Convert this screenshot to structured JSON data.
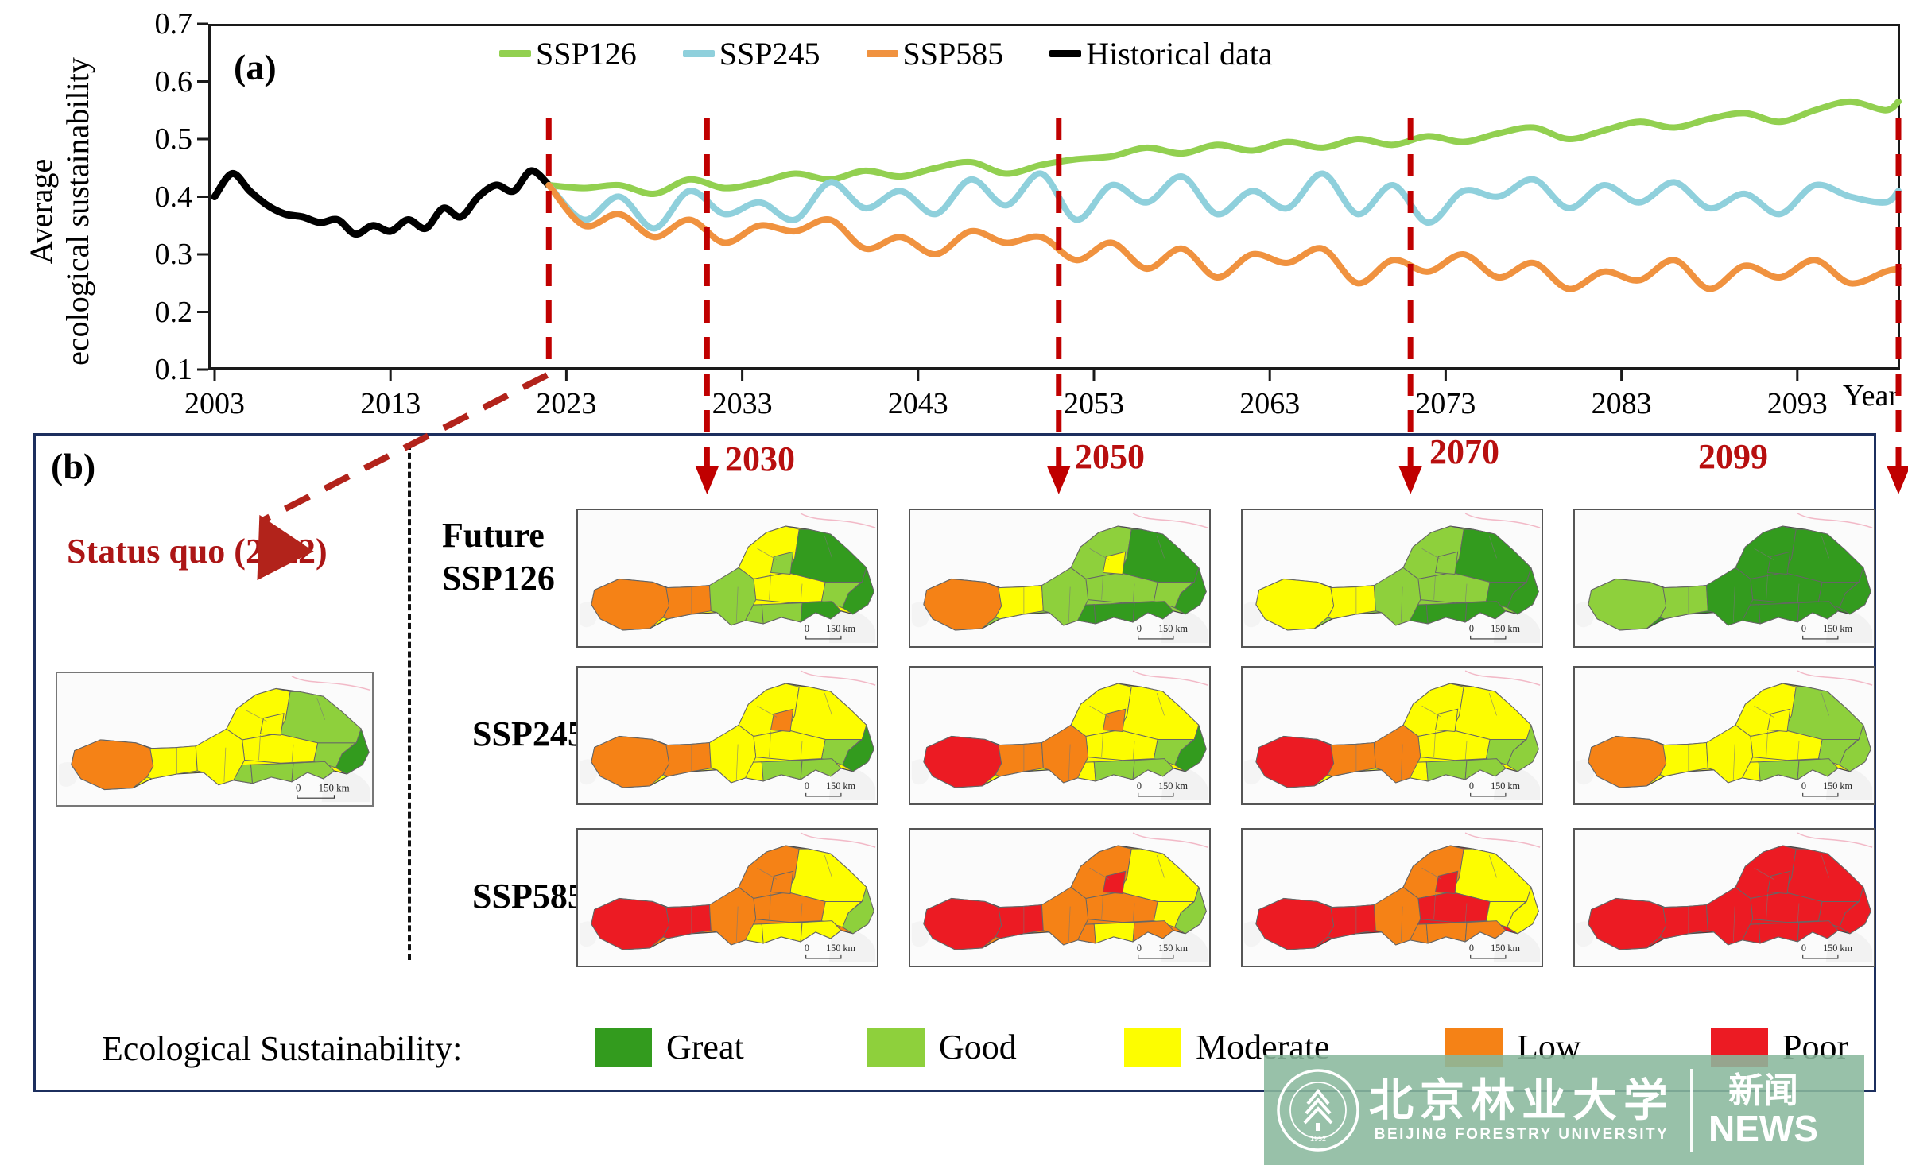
{
  "figure": {
    "panel_a": {
      "label": "(a)",
      "y_axis_label_lines": [
        "Average",
        "ecological sustainability"
      ],
      "x_axis_label": "Year",
      "y_ticks": [
        "0.7",
        "0.6",
        "0.5",
        "0.4",
        "0.3",
        "0.2",
        "0.1"
      ],
      "x_ticks": [
        "2003",
        "2013",
        "2023",
        "2033",
        "2043",
        "2053",
        "2063",
        "2073",
        "2083",
        "2093"
      ],
      "legend": [
        {
          "label": "SSP126",
          "color": "#92d050"
        },
        {
          "label": "SSP245",
          "color": "#8fd0dc"
        },
        {
          "label": "SSP585",
          "color": "#f0923f"
        },
        {
          "label": "Historical data",
          "color": "#000000"
        }
      ],
      "marker_line_color": "#c00000"
    },
    "panel_b": {
      "label": "(b)",
      "status_quo_label": "Status quo (2022)",
      "future_label": "Future",
      "row_labels": [
        "SSP126",
        "SSP245",
        "SSP585"
      ],
      "col_years": [
        "2030",
        "2050",
        "2070",
        "2099"
      ],
      "scale_zero": "0",
      "scale_dist": "150 km",
      "legend_title": "Ecological Sustainability:",
      "legend_items": [
        {
          "key": "G",
          "label": "Great",
          "color": "#339b1e"
        },
        {
          "key": "g",
          "label": "Good",
          "color": "#8ed03c"
        },
        {
          "key": "Y",
          "label": "Moderate",
          "color": "#fdfd00"
        },
        {
          "key": "O",
          "label": "Low",
          "color": "#f58216"
        },
        {
          "key": "R",
          "label": "Poor",
          "color": "#ec1b23"
        }
      ]
    },
    "watermark": {
      "cn_name": "北京林业大学",
      "en_name": "BEIJING FORESTRY UNIVERSITY",
      "news_cn": "新闻",
      "news_en": "NEWS",
      "seal_year": "1952"
    }
  },
  "chart_data": {
    "type": "line",
    "title": "",
    "xlabel": "Year",
    "ylabel": "Average ecological sustainability",
    "xlim": [
      2003,
      2099
    ],
    "ylim": [
      0.1,
      0.7
    ],
    "x_tick_values": [
      2003,
      2013,
      2023,
      2033,
      2043,
      2053,
      2063,
      2073,
      2083,
      2093
    ],
    "y_tick_values": [
      0.7,
      0.6,
      0.5,
      0.4,
      0.3,
      0.2,
      0.1
    ],
    "grid": false,
    "legend_position": "top-inside",
    "marker_years": [
      2022,
      2030,
      2050,
      2070,
      2099
    ],
    "series": [
      {
        "name": "Historical data",
        "color": "#000000",
        "x_start": 2003,
        "x_step": 1,
        "x_end_extra": null,
        "values": [
          0.4,
          0.44,
          0.41,
          0.385,
          0.37,
          0.365,
          0.355,
          0.36,
          0.335,
          0.35,
          0.34,
          0.36,
          0.345,
          0.38,
          0.365,
          0.4,
          0.42,
          0.41,
          0.445,
          0.42
        ]
      },
      {
        "name": "SSP126",
        "color": "#92d050",
        "x_start": 2022,
        "x_step": 2,
        "x_end_extra": 2099,
        "values": [
          0.42,
          0.415,
          0.42,
          0.405,
          0.43,
          0.415,
          0.425,
          0.44,
          0.43,
          0.445,
          0.435,
          0.45,
          0.46,
          0.44,
          0.455,
          0.465,
          0.47,
          0.485,
          0.475,
          0.49,
          0.48,
          0.495,
          0.485,
          0.5,
          0.49,
          0.505,
          0.495,
          0.51,
          0.52,
          0.5,
          0.515,
          0.53,
          0.52,
          0.535,
          0.545,
          0.53,
          0.55,
          0.565,
          0.55,
          0.565
        ]
      },
      {
        "name": "SSP245",
        "color": "#8fd0dc",
        "x_start": 2022,
        "x_step": 2,
        "x_end_extra": 2099,
        "values": [
          0.42,
          0.36,
          0.4,
          0.345,
          0.41,
          0.37,
          0.39,
          0.36,
          0.425,
          0.38,
          0.41,
          0.37,
          0.43,
          0.385,
          0.44,
          0.36,
          0.42,
          0.39,
          0.435,
          0.37,
          0.41,
          0.38,
          0.44,
          0.37,
          0.42,
          0.355,
          0.41,
          0.4,
          0.43,
          0.38,
          0.42,
          0.39,
          0.425,
          0.38,
          0.405,
          0.37,
          0.42,
          0.4,
          0.39,
          0.41
        ]
      },
      {
        "name": "SSP585",
        "color": "#f0923f",
        "x_start": 2022,
        "x_step": 2,
        "x_end_extra": 2099,
        "values": [
          0.42,
          0.35,
          0.37,
          0.33,
          0.36,
          0.32,
          0.35,
          0.34,
          0.36,
          0.31,
          0.33,
          0.3,
          0.34,
          0.32,
          0.33,
          0.29,
          0.32,
          0.275,
          0.31,
          0.26,
          0.3,
          0.285,
          0.31,
          0.25,
          0.29,
          0.27,
          0.3,
          0.26,
          0.285,
          0.24,
          0.27,
          0.255,
          0.29,
          0.24,
          0.28,
          0.26,
          0.29,
          0.25,
          0.27,
          0.275
        ]
      }
    ]
  },
  "map_grid": {
    "class_colors": {
      "G": "#339b1e",
      "g": "#8ed03c",
      "Y": "#fdfd00",
      "O": "#f58216",
      "R": "#ec1b23"
    },
    "status_quo": {
      "id": "statusquo",
      "scenario": "Status quo",
      "year": "2022",
      "zones": {
        "w1": "O",
        "w2": "Y",
        "w3": "Y",
        "n": "Y",
        "np": "Y",
        "ne": "g",
        "c": "Y",
        "e": "g",
        "se": "G",
        "s1": "g",
        "s2": "g",
        "s3": "g"
      }
    },
    "cells": [
      {
        "id": "ssp126-2030",
        "scenario": "SSP126",
        "year": "2030",
        "row": 0,
        "col": 0,
        "zones": {
          "w1": "O",
          "w2": "O",
          "w3": "g",
          "n": "Y",
          "np": "g",
          "ne": "G",
          "c": "Y",
          "e": "g",
          "se": "G",
          "s1": "g",
          "s2": "G",
          "s3": "g"
        }
      },
      {
        "id": "ssp126-2050",
        "scenario": "SSP126",
        "year": "2050",
        "row": 0,
        "col": 1,
        "zones": {
          "w1": "O",
          "w2": "Y",
          "w3": "g",
          "n": "g",
          "np": "Y",
          "ne": "G",
          "c": "g",
          "e": "g",
          "se": "G",
          "s1": "G",
          "s2": "G",
          "s3": "G"
        }
      },
      {
        "id": "ssp126-2070",
        "scenario": "SSP126",
        "year": "2070",
        "row": 0,
        "col": 2,
        "zones": {
          "w1": "Y",
          "w2": "Y",
          "w3": "g",
          "n": "g",
          "np": "g",
          "ne": "G",
          "c": "g",
          "e": "G",
          "se": "G",
          "s1": "G",
          "s2": "G",
          "s3": "G"
        }
      },
      {
        "id": "ssp126-2099",
        "scenario": "SSP126",
        "year": "2099",
        "row": 0,
        "col": 3,
        "zones": {
          "w1": "g",
          "w2": "g",
          "w3": "G",
          "n": "G",
          "np": "G",
          "ne": "G",
          "c": "G",
          "e": "G",
          "se": "G",
          "s1": "G",
          "s2": "G",
          "s3": "G"
        }
      },
      {
        "id": "ssp245-2030",
        "scenario": "SSP245",
        "year": "2030",
        "row": 1,
        "col": 0,
        "zones": {
          "w1": "O",
          "w2": "O",
          "w3": "Y",
          "n": "Y",
          "np": "O",
          "ne": "Y",
          "c": "Y",
          "e": "g",
          "se": "G",
          "s1": "g",
          "s2": "g",
          "s3": "Y"
        }
      },
      {
        "id": "ssp245-2050",
        "scenario": "SSP245",
        "year": "2050",
        "row": 1,
        "col": 1,
        "zones": {
          "w1": "R",
          "w2": "O",
          "w3": "O",
          "n": "Y",
          "np": "O",
          "ne": "Y",
          "c": "Y",
          "e": "g",
          "se": "G",
          "s1": "g",
          "s2": "g",
          "s3": "Y"
        }
      },
      {
        "id": "ssp245-2070",
        "scenario": "SSP245",
        "year": "2070",
        "row": 1,
        "col": 2,
        "zones": {
          "w1": "R",
          "w2": "O",
          "w3": "O",
          "n": "Y",
          "np": "Y",
          "ne": "Y",
          "c": "Y",
          "e": "g",
          "se": "g",
          "s1": "g",
          "s2": "g",
          "s3": "Y"
        }
      },
      {
        "id": "ssp245-2099",
        "scenario": "SSP245",
        "year": "2099",
        "row": 1,
        "col": 3,
        "zones": {
          "w1": "O",
          "w2": "Y",
          "w3": "Y",
          "n": "Y",
          "np": "Y",
          "ne": "g",
          "c": "Y",
          "e": "g",
          "se": "g",
          "s1": "g",
          "s2": "g",
          "s3": "Y"
        }
      },
      {
        "id": "ssp585-2030",
        "scenario": "SSP585",
        "year": "2030",
        "row": 2,
        "col": 0,
        "zones": {
          "w1": "R",
          "w2": "R",
          "w3": "O",
          "n": "O",
          "np": "O",
          "ne": "Y",
          "c": "O",
          "e": "Y",
          "se": "g",
          "s1": "Y",
          "s2": "Y",
          "s3": "Y"
        }
      },
      {
        "id": "ssp585-2050",
        "scenario": "SSP585",
        "year": "2050",
        "row": 2,
        "col": 1,
        "zones": {
          "w1": "R",
          "w2": "R",
          "w3": "O",
          "n": "O",
          "np": "R",
          "ne": "Y",
          "c": "O",
          "e": "Y",
          "se": "g",
          "s1": "Y",
          "s2": "O",
          "s3": "O"
        }
      },
      {
        "id": "ssp585-2070",
        "scenario": "SSP585",
        "year": "2070",
        "row": 2,
        "col": 2,
        "zones": {
          "w1": "R",
          "w2": "R",
          "w3": "O",
          "n": "O",
          "np": "R",
          "ne": "Y",
          "c": "R",
          "e": "Y",
          "se": "Y",
          "s1": "O",
          "s2": "O",
          "s3": "O"
        }
      },
      {
        "id": "ssp585-2099",
        "scenario": "SSP585",
        "year": "2099",
        "row": 2,
        "col": 3,
        "zones": {
          "w1": "R",
          "w2": "R",
          "w3": "R",
          "n": "R",
          "np": "R",
          "ne": "R",
          "c": "R",
          "e": "R",
          "se": "R",
          "s1": "R",
          "s2": "R",
          "s3": "R"
        }
      }
    ]
  }
}
